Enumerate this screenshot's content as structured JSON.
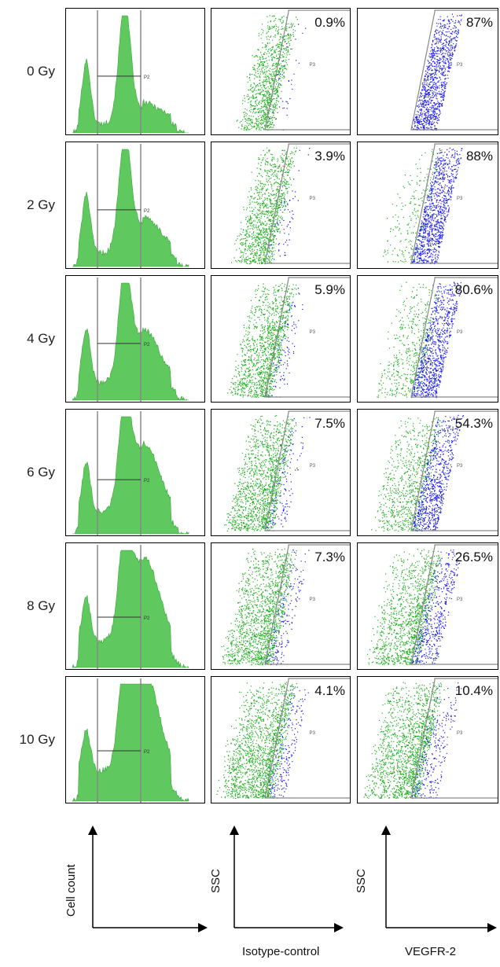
{
  "rows": [
    {
      "dose": "0 Gy",
      "isotype": "0.9%",
      "vegfr2": "87%"
    },
    {
      "dose": "2 Gy",
      "isotype": "3.9%",
      "vegfr2": "88%"
    },
    {
      "dose": "4 Gy",
      "isotype": "5.9%",
      "vegfr2": "80.6%"
    },
    {
      "dose": "6 Gy",
      "isotype": "7.5%",
      "vegfr2": "54.3%"
    },
    {
      "dose": "8 Gy",
      "isotype": "7.3%",
      "vegfr2": "26.5%"
    },
    {
      "dose": "10 Gy",
      "isotype": "4.1%",
      "vegfr2": "10.4%"
    }
  ],
  "gate_labels": {
    "histogram": "P2",
    "scatter": "P3"
  },
  "axes": {
    "histogram_y": "Cell count",
    "scatter_y": "SSC",
    "isotype_x": "Isotype-control",
    "vegfr2_x": "VEGFR-2"
  },
  "colors": {
    "histogram_fill": "#5fc95f",
    "negative_events": "#1fae1f",
    "positive_events": "#1a1aee",
    "gate_line": "#888888"
  }
}
